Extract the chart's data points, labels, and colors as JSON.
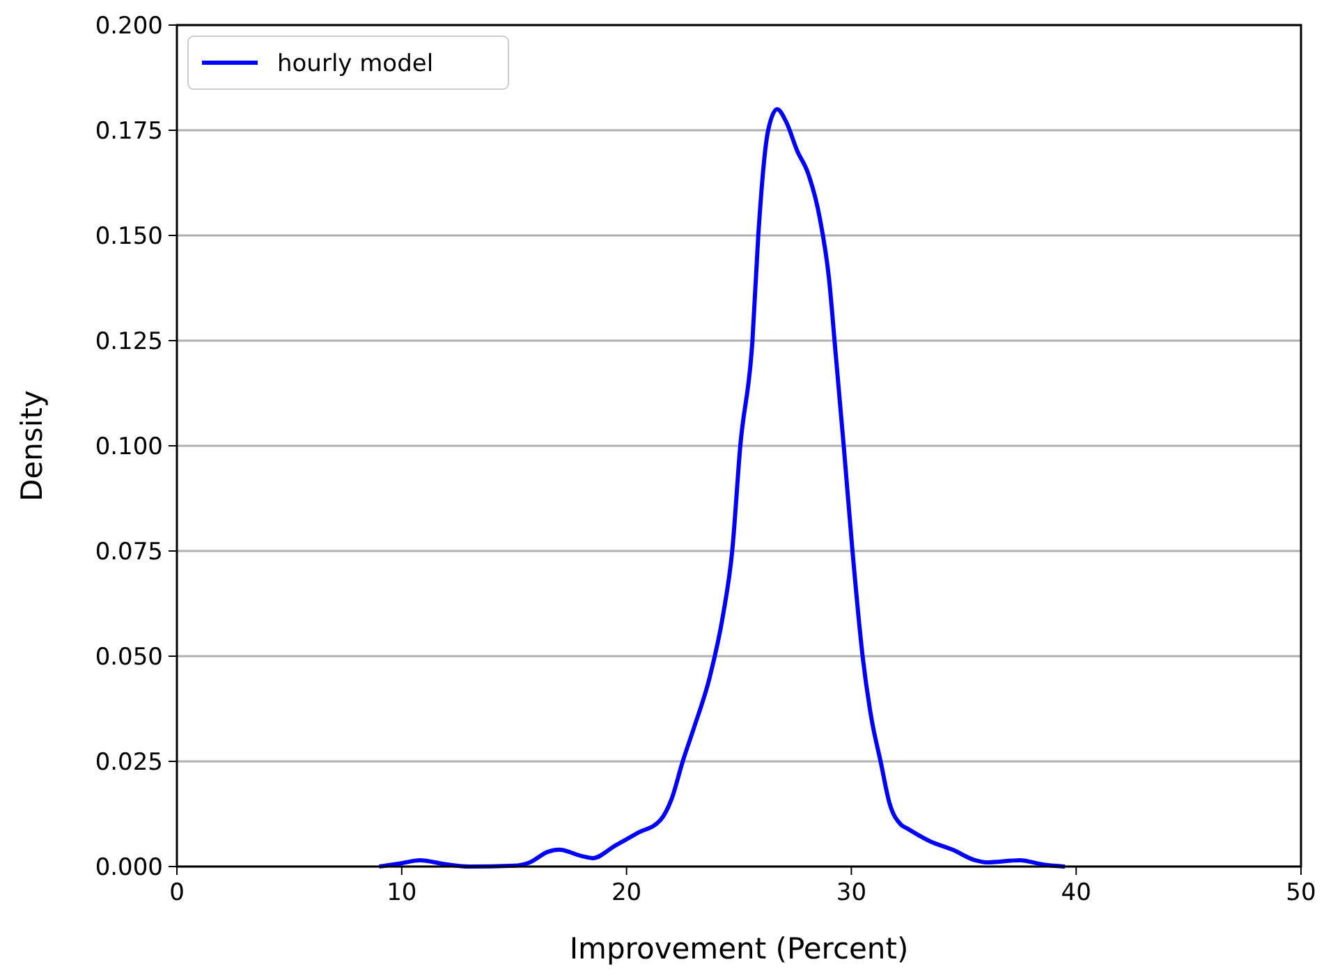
{
  "chart_data": {
    "type": "line",
    "xlabel": "Improvement (Percent)",
    "ylabel": "Density",
    "xlim": [
      0,
      50
    ],
    "xticks": [
      0,
      10,
      20,
      30,
      40,
      50
    ],
    "ylim": [
      0,
      0.2
    ],
    "yticks": [
      {
        "value": 0,
        "label": "0.000"
      },
      {
        "value": 0.025,
        "label": "0.025"
      },
      {
        "value": 0.05,
        "label": "0.050"
      },
      {
        "value": 0.075,
        "label": "0.075"
      },
      {
        "value": 0.1,
        "label": "0.100"
      },
      {
        "value": 0.125,
        "label": "0.125"
      },
      {
        "value": 0.15,
        "label": "0.150"
      },
      {
        "value": 0.175,
        "label": "0.175"
      },
      {
        "value": 0.2,
        "label": "0.200"
      }
    ],
    "grid": "y",
    "legend": "top left",
    "series": [
      {
        "name": "hourly model",
        "color": "#0000ff",
        "x": [
          9,
          10,
          10.8,
          12,
          13,
          15,
          15.7,
          16.5,
          17,
          18,
          18.5,
          19.5,
          20.5,
          21.5,
          22,
          22.5,
          23,
          23.7,
          24.3,
          24.7,
          25.06,
          25.6,
          25.86,
          26.3,
          26.7,
          27.1,
          27.6,
          28.06,
          28.6,
          29.0,
          29.3,
          29.66,
          30.05,
          30.5,
          30.9,
          31.3,
          31.7,
          32.2,
          32.5,
          33.5,
          34.5,
          35.5,
          36,
          37.5,
          38.5,
          39.5
        ],
        "values": [
          0,
          0.0008,
          0.0015,
          0.0005,
          0,
          0.0002,
          0.001,
          0.0035,
          0.004,
          0.0025,
          0.002,
          0.005,
          0.008,
          0.011,
          0.016,
          0.025,
          0.033,
          0.045,
          0.06,
          0.075,
          0.1,
          0.125,
          0.15,
          0.175,
          0.18,
          0.177,
          0.17,
          0.165,
          0.154,
          0.14,
          0.122,
          0.1,
          0.075,
          0.05,
          0.035,
          0.025,
          0.015,
          0.01,
          0.009,
          0.006,
          0.004,
          0.0015,
          0.001,
          0.0015,
          0.0005,
          0
        ]
      }
    ]
  }
}
